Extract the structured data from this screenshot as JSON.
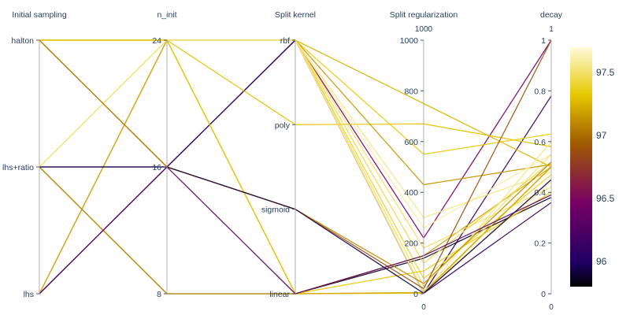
{
  "chart_data": {
    "type": "parallel_coordinates",
    "axes": [
      {
        "name": "Initial sampling",
        "kind": "categorical",
        "categories": [
          "halton",
          "lhs+ratio",
          "lhs"
        ]
      },
      {
        "name": "n_init",
        "kind": "categorical",
        "categories": [
          "24",
          "16",
          "8"
        ]
      },
      {
        "name": "Split kernel",
        "kind": "categorical",
        "categories": [
          "rbf",
          "poly",
          "sigmoid",
          "linear"
        ]
      },
      {
        "name": "Split regularization",
        "kind": "numeric",
        "range": [
          0,
          1000
        ],
        "ticks": [
          0,
          200,
          400,
          600,
          800,
          1000
        ],
        "tick_labels": [
          "0",
          "200",
          "400",
          "600",
          "800",
          "1000"
        ],
        "range_top_label": "1000",
        "range_bottom_label": "0"
      },
      {
        "name": "decay",
        "kind": "numeric",
        "range": [
          0,
          1
        ],
        "ticks": [
          0,
          0.2,
          0.4,
          0.6,
          0.8,
          1
        ],
        "tick_labels": [
          "0",
          "0.2",
          "0.4",
          "0.6",
          "0.8",
          "1"
        ],
        "range_top_label": "1",
        "range_bottom_label": "0"
      }
    ],
    "colorbar": {
      "colorscale": "Electric",
      "range": [
        95.8,
        97.7
      ],
      "ticks": [
        96,
        96.5,
        97,
        97.5
      ],
      "tick_labels": [
        "96",
        "96.5",
        "97",
        "97.5"
      ]
    },
    "lines": [
      {
        "sampling": "lhs",
        "n_init": "24",
        "kernel": "rbf",
        "reg": 220,
        "decay": 1.0,
        "color": 96.55
      },
      {
        "sampling": "lhs",
        "n_init": "16",
        "kernel": "rbf",
        "reg": 2,
        "decay": 0.78,
        "color": 96.2
      },
      {
        "sampling": "lhs",
        "n_init": "24",
        "kernel": "linear",
        "reg": 2,
        "decay": 0.5,
        "color": 97.3
      },
      {
        "sampling": "lhs+ratio",
        "n_init": "8",
        "kernel": "linear",
        "reg": 140,
        "decay": 0.38,
        "color": 95.9
      },
      {
        "sampling": "lhs+ratio",
        "n_init": "8",
        "kernel": "linear",
        "reg": 150,
        "decay": 0.5,
        "color": 97.2
      },
      {
        "sampling": "lhs+ratio",
        "n_init": "24",
        "kernel": "rbf",
        "reg": 2,
        "decay": 0.45,
        "color": 97.6
      },
      {
        "sampling": "lhs+ratio",
        "n_init": "24",
        "kernel": "rbf",
        "reg": 30,
        "decay": 0.55,
        "color": 97.5
      },
      {
        "sampling": "lhs+ratio",
        "n_init": "16",
        "kernel": "rbf",
        "reg": 2,
        "decay": 0.36,
        "color": 96.2
      },
      {
        "sampling": "halton",
        "n_init": "24",
        "kernel": "poly",
        "reg": 670,
        "decay": 0.58,
        "color": 97.3
      },
      {
        "sampling": "halton",
        "n_init": "24",
        "kernel": "rbf",
        "reg": 750,
        "decay": 0.5,
        "color": 97.25
      },
      {
        "sampling": "halton",
        "n_init": "24",
        "kernel": "rbf",
        "reg": 550,
        "decay": 0.63,
        "color": 97.35
      },
      {
        "sampling": "halton",
        "n_init": "24",
        "kernel": "rbf",
        "reg": 430,
        "decay": 0.51,
        "color": 97.15
      },
      {
        "sampling": "halton",
        "n_init": "24",
        "kernel": "rbf",
        "reg": 300,
        "decay": 0.48,
        "color": 97.55
      },
      {
        "sampling": "halton",
        "n_init": "24",
        "kernel": "rbf",
        "reg": 260,
        "decay": 0.55,
        "color": 97.6
      },
      {
        "sampling": "halton",
        "n_init": "24",
        "kernel": "rbf",
        "reg": 180,
        "decay": 0.42,
        "color": 97.5
      },
      {
        "sampling": "halton",
        "n_init": "24",
        "kernel": "rbf",
        "reg": 120,
        "decay": 0.52,
        "color": 97.45
      },
      {
        "sampling": "halton",
        "n_init": "24",
        "kernel": "rbf",
        "reg": 60,
        "decay": 0.47,
        "color": 97.4
      },
      {
        "sampling": "halton",
        "n_init": "24",
        "kernel": "rbf",
        "reg": 10,
        "decay": 0.44,
        "color": 97.6
      },
      {
        "sampling": "halton",
        "n_init": "24",
        "kernel": "rbf",
        "reg": 2,
        "decay": 0.6,
        "color": 97.55
      },
      {
        "sampling": "halton",
        "n_init": "24",
        "kernel": "linear",
        "reg": 5,
        "decay": 0.5,
        "color": 97.2
      },
      {
        "sampling": "halton",
        "n_init": "24",
        "kernel": "linear",
        "reg": 90,
        "decay": 0.4,
        "color": 97.35
      },
      {
        "sampling": "halton",
        "n_init": "16",
        "kernel": "sigmoid",
        "reg": 20,
        "decay": 1.0,
        "color": 96.9
      },
      {
        "sampling": "halton",
        "n_init": "16",
        "kernel": "sigmoid",
        "reg": 40,
        "decay": 0.52,
        "color": 97.1
      },
      {
        "sampling": "lhs+ratio",
        "n_init": "16",
        "kernel": "sigmoid",
        "reg": 2,
        "decay": 0.45,
        "color": 96.0
      },
      {
        "sampling": "lhs",
        "n_init": "16",
        "kernel": "linear",
        "reg": 150,
        "decay": 0.39,
        "color": 96.4
      }
    ]
  }
}
